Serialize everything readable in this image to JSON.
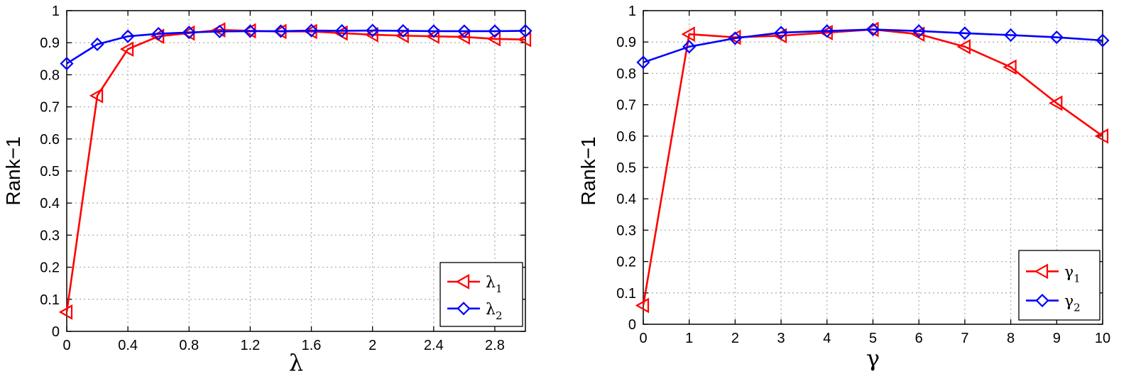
{
  "chart_data": [
    {
      "type": "line",
      "title": "",
      "xlabel": "λ",
      "ylabel": "Rank−1",
      "xlim": [
        0,
        3
      ],
      "ylim": [
        0,
        1
      ],
      "xticks": [
        "0",
        "0.4",
        "0.8",
        "1.2",
        "1.6",
        "2",
        "2.4",
        "2.8"
      ],
      "xtick_values": [
        0,
        0.4,
        0.8,
        1.2,
        1.6,
        2,
        2.4,
        2.8
      ],
      "yticks": [
        "0",
        "0.1",
        "0.2",
        "0.3",
        "0.4",
        "0.5",
        "0.6",
        "0.7",
        "0.8",
        "0.9",
        "1"
      ],
      "ytick_values": [
        0,
        0.1,
        0.2,
        0.3,
        0.4,
        0.5,
        0.6,
        0.7,
        0.8,
        0.9,
        1
      ],
      "grid": true,
      "legend_position": "bottom-right",
      "x": [
        0,
        0.2,
        0.4,
        0.6,
        0.8,
        1.0,
        1.2,
        1.4,
        1.6,
        1.8,
        2.0,
        2.2,
        2.4,
        2.6,
        2.8,
        3.0
      ],
      "series": [
        {
          "name": "λ",
          "sub": "1",
          "color": "#ff0000",
          "marker": "triangle-left",
          "values": [
            0.06,
            0.735,
            0.88,
            0.92,
            0.93,
            0.94,
            0.937,
            0.935,
            0.935,
            0.93,
            0.925,
            0.922,
            0.92,
            0.918,
            0.912,
            0.91
          ]
        },
        {
          "name": "λ",
          "sub": "2",
          "color": "#0000ff",
          "marker": "diamond",
          "values": [
            0.835,
            0.895,
            0.92,
            0.928,
            0.932,
            0.935,
            0.936,
            0.936,
            0.938,
            0.937,
            0.938,
            0.937,
            0.936,
            0.936,
            0.936,
            0.937
          ]
        }
      ]
    },
    {
      "type": "line",
      "title": "",
      "xlabel": "γ",
      "ylabel": "Rank−1",
      "xlim": [
        0,
        10
      ],
      "ylim": [
        0,
        1
      ],
      "xticks": [
        "0",
        "1",
        "2",
        "3",
        "4",
        "5",
        "6",
        "7",
        "8",
        "9",
        "10"
      ],
      "xtick_values": [
        0,
        1,
        2,
        3,
        4,
        5,
        6,
        7,
        8,
        9,
        10
      ],
      "yticks": [
        "0",
        "0.1",
        "0.2",
        "0.3",
        "0.4",
        "0.5",
        "0.6",
        "0.7",
        "0.8",
        "0.9",
        "1"
      ],
      "ytick_values": [
        0,
        0.1,
        0.2,
        0.3,
        0.4,
        0.5,
        0.6,
        0.7,
        0.8,
        0.9,
        1
      ],
      "grid": true,
      "legend_position": "bottom-right",
      "x": [
        0,
        1,
        2,
        3,
        4,
        5,
        6,
        7,
        8,
        9,
        10
      ],
      "series": [
        {
          "name": "γ",
          "sub": "1",
          "color": "#ff0000",
          "marker": "triangle-left",
          "values": [
            0.06,
            0.925,
            0.915,
            0.92,
            0.93,
            0.94,
            0.925,
            0.885,
            0.82,
            0.705,
            0.6
          ]
        },
        {
          "name": "γ",
          "sub": "2",
          "color": "#0000ff",
          "marker": "diamond",
          "values": [
            0.835,
            0.885,
            0.912,
            0.93,
            0.935,
            0.94,
            0.935,
            0.928,
            0.922,
            0.915,
            0.905
          ]
        }
      ]
    }
  ]
}
